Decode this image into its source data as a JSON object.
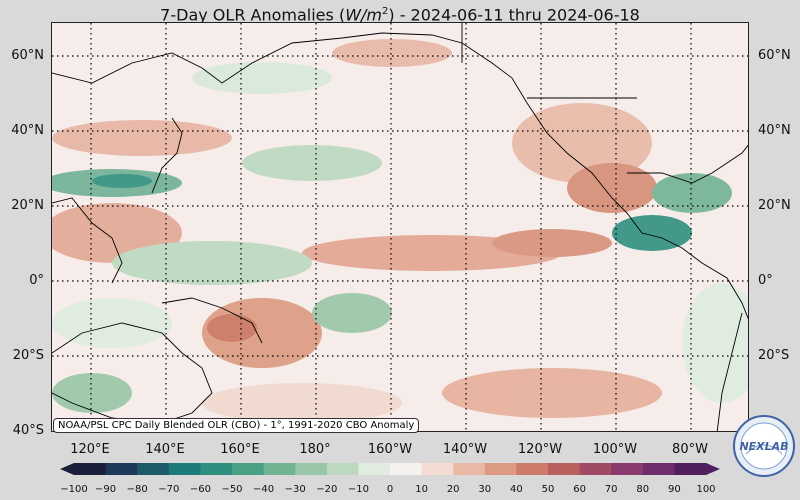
{
  "title": {
    "prefix": "7-Day OLR Anomalies (",
    "var": "W/m",
    "sup": "2",
    "suffix": ") - 2024-06-11 thru 2024-06-18"
  },
  "lat_labels": [
    "60°N",
    "40°N",
    "20°N",
    "0°",
    "20°S",
    "40°S"
  ],
  "lon_labels": [
    "120°E",
    "140°E",
    "160°E",
    "180°",
    "160°W",
    "140°W",
    "120°W",
    "100°W",
    "80°W"
  ],
  "credit": "NOAA/PSL CPC Daily Blended OLR (CBO) - 1°, 1991-2020 CBO Anomaly",
  "colorbar": {
    "ticks": [
      "−100",
      "−90",
      "−80",
      "−70",
      "−60",
      "−50",
      "−40",
      "−30",
      "−20",
      "−10",
      "0",
      "10",
      "20",
      "30",
      "40",
      "50",
      "60",
      "70",
      "80",
      "90",
      "100"
    ],
    "colors": [
      "#1b1f3a",
      "#1e3a5a",
      "#1d5a6a",
      "#1f7a7a",
      "#2f8f7f",
      "#4aa084",
      "#72b392",
      "#98c6a6",
      "#bcd9c0",
      "#dfecdf",
      "#f4f1ee",
      "#f3ddd3",
      "#e9b9a6",
      "#dc9a80",
      "#cc7b68",
      "#b9605f",
      "#a04a63",
      "#8a3a6c",
      "#6f2d6e",
      "#4f1f5e"
    ]
  },
  "logo_text": "NEXLAB",
  "colors": {
    "background": "#d9d9d9",
    "grid": "#000000",
    "coast": "#000000",
    "neg_strong": "#1f7a7a",
    "pos_strong": "#b9605f"
  }
}
